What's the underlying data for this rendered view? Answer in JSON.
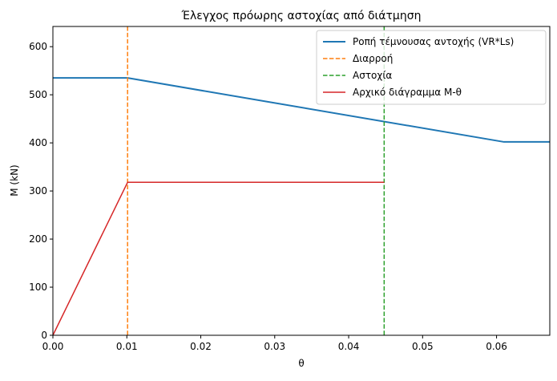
{
  "chart_data": {
    "type": "line",
    "title": "Έλεγχος πρόωρης αστοχίας από διάτμηση",
    "xlabel": "θ",
    "ylabel": "M (kN)",
    "xlim": [
      0,
      0.0672
    ],
    "ylim": [
      0,
      642
    ],
    "grid": false,
    "legend_position": "top-right",
    "xticks": [
      0.0,
      0.01,
      0.02,
      0.03,
      0.04,
      0.05,
      0.06
    ],
    "xtick_labels": [
      "0.00",
      "0.01",
      "0.02",
      "0.03",
      "0.04",
      "0.05",
      "0.06"
    ],
    "yticks": [
      0,
      100,
      200,
      300,
      400,
      500,
      600
    ],
    "ytick_labels": [
      "0",
      "100",
      "200",
      "300",
      "400",
      "500",
      "600"
    ],
    "series": [
      {
        "name": "Ροπή τέμνουσας αντοχής (VR*Ls)",
        "color": "#1f77b4",
        "style": "solid",
        "width": 2,
        "x": [
          0.0,
          0.0101,
          0.061,
          0.0672
        ],
        "y": [
          535,
          535,
          402,
          402
        ]
      },
      {
        "name": "Διαρροή",
        "color": "#ff7f0e",
        "style": "dashed",
        "width": 1.5,
        "vline": 0.0101
      },
      {
        "name": "Αστοχία",
        "color": "#2ca02c",
        "style": "dashed",
        "width": 1.5,
        "vline": 0.0448
      },
      {
        "name": "Αρχικό διάγραμμα Μ-θ",
        "color": "#d62728",
        "style": "solid",
        "width": 1.5,
        "x": [
          0.0,
          0.0101,
          0.0448
        ],
        "y": [
          0,
          318,
          318
        ]
      }
    ]
  }
}
